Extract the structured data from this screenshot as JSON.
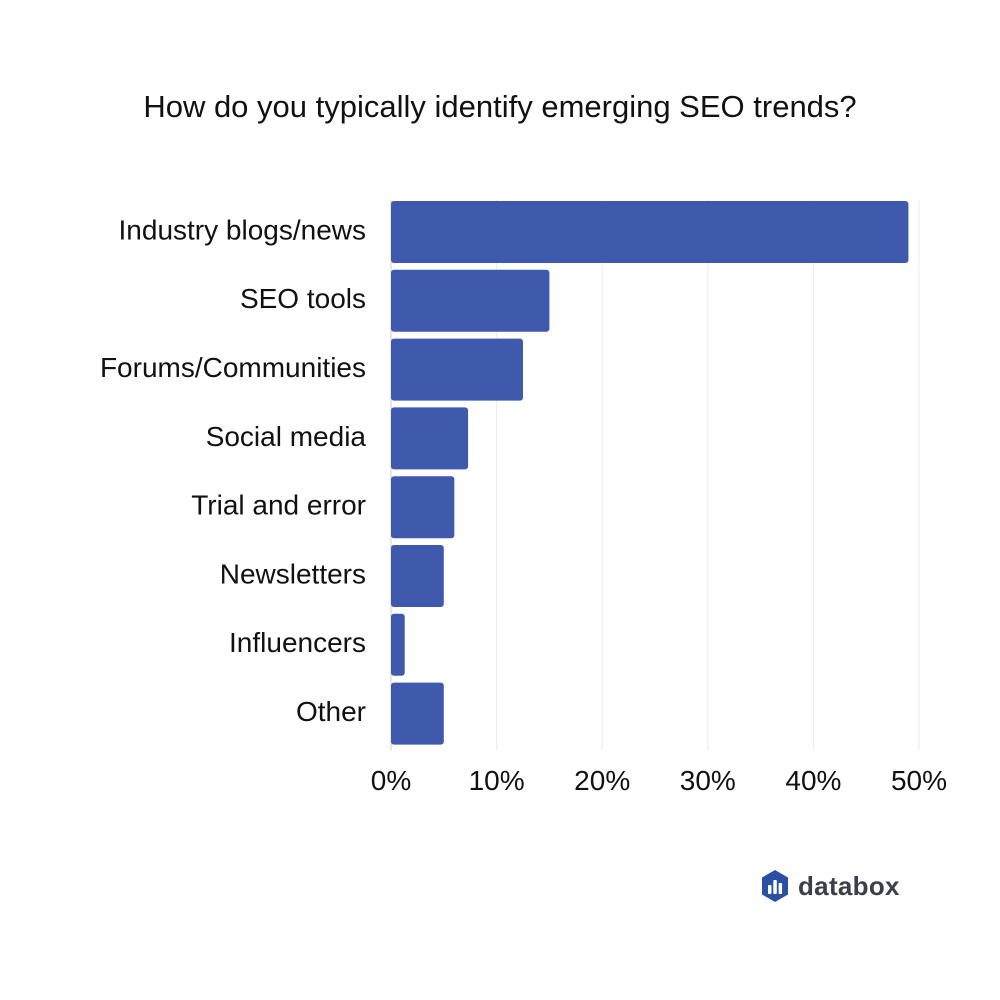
{
  "chart_data": {
    "type": "bar",
    "orientation": "horizontal",
    "title": "How do you typically identify emerging SEO trends?",
    "categories": [
      "Industry blogs/news",
      "SEO tools",
      "Forums/Communities",
      "Social media",
      "Trial and error",
      "Newsletters",
      "Influencers",
      "Other"
    ],
    "values": [
      49,
      15,
      12.5,
      7.3,
      6,
      5,
      1.3,
      5
    ],
    "xlim": [
      0,
      50
    ],
    "xticks": [
      0,
      10,
      20,
      30,
      40,
      50
    ],
    "xtick_labels": [
      "0%",
      "10%",
      "20%",
      "30%",
      "40%",
      "50%"
    ],
    "grid": "vertical",
    "bar_color": "#3f5aad"
  },
  "brand": {
    "name": "databox",
    "colors": [
      "#2b4fa3",
      "#4d79d8",
      "#7fa6ee"
    ]
  }
}
